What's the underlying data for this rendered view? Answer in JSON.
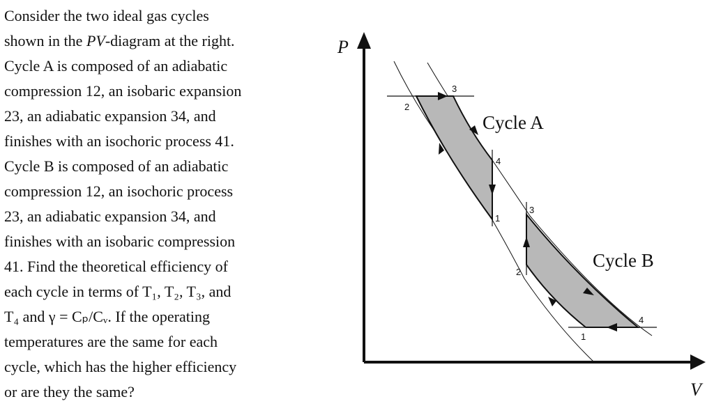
{
  "text": {
    "lines": [
      "Consider the two ideal gas cycles",
      [
        "shown in the ",
        "PV",
        "-diagram at the right."
      ],
      "Cycle A is composed of an adiabatic",
      "compression 12, an isobaric expansion",
      "23, an adiabatic expansion 34, and",
      "finishes with an isochoric process 41.",
      "Cycle B is composed of an adiabatic",
      "compression 12, an isochoric process",
      "23, an adiabatic expansion 34, and",
      "finishes with an isobaric compression",
      "41. Find the theoretical efficiency of",
      "each cycle in terms of T₁, T₂, T₃, and",
      "T₄ and γ = Cₚ/Cᵥ. If the operating",
      "temperatures are the same for each",
      "cycle, which has the higher efficiency",
      "or are they the same?"
    ]
  },
  "diagram": {
    "axis_p": "P",
    "axis_v": "V",
    "cycle_a": {
      "label": "Cycle A",
      "points": [
        "1",
        "2",
        "3",
        "4"
      ]
    },
    "cycle_b": {
      "label": "Cycle B",
      "points": [
        "1",
        "2",
        "3",
        "4"
      ]
    }
  }
}
